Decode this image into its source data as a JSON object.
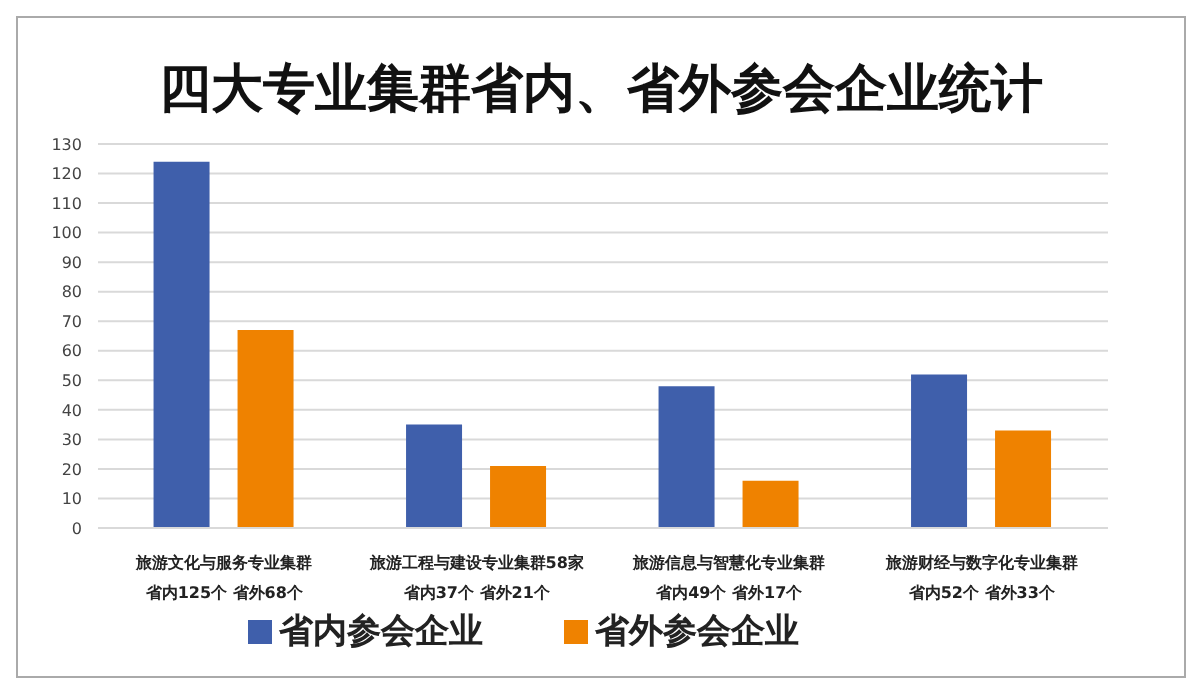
{
  "chart_data": {
    "type": "bar",
    "title": "四大专业集群省内、省外参会企业统计",
    "categories": [
      "旅游文化与服务专业集群",
      "旅游工程与建设专业集群58家",
      "旅游信息与智慧化专业集群",
      "旅游财经与数字化专业集群"
    ],
    "annotations": [
      "省内125个  省外68个",
      "省内37个  省外21个",
      "省内49个  省外17个",
      "省内52个  省外33个"
    ],
    "series": [
      {
        "name": "省内参会企业",
        "color": "#3f5fab",
        "values": [
          124,
          35,
          48,
          52
        ]
      },
      {
        "name": "省外参会企业",
        "color": "#ef8200",
        "values": [
          67,
          21,
          16,
          33
        ]
      }
    ],
    "ylim": [
      0,
      130
    ],
    "yticks": [
      0,
      10,
      20,
      30,
      40,
      50,
      60,
      70,
      80,
      90,
      100,
      110,
      120,
      130
    ],
    "grid": "y",
    "legend": "bottom"
  }
}
